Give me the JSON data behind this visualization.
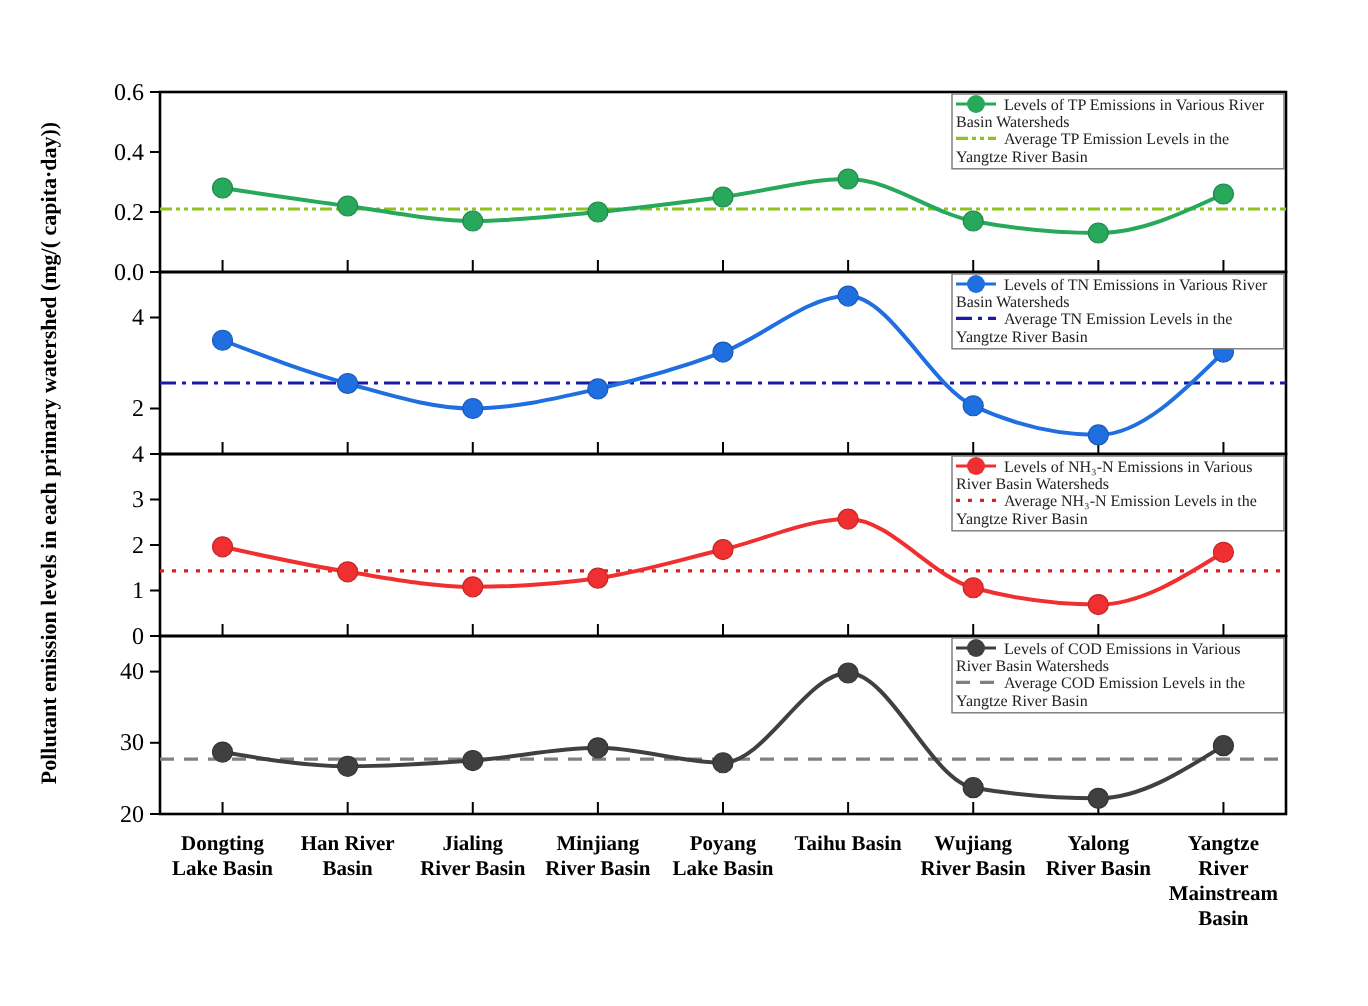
{
  "chart_data": [
    {
      "type": "line",
      "categories": [
        null,
        null,
        null,
        null,
        null,
        null,
        null,
        null,
        null
      ],
      "series": [
        {
          "name": "Levels of TP Emissions in Various River Basin Watersheds",
          "color": "#27a85a",
          "values": [
            0.28,
            0.22,
            0.17,
            0.2,
            0.25,
            0.31,
            0.17,
            0.13,
            0.26
          ]
        }
      ],
      "ref_lines": [
        {
          "axis": "y",
          "value": 0.21,
          "label": "Average TP Emission Levels in the Yangtze River Basin",
          "color": "#8dc21f",
          "line_style": "dashdotdot"
        }
      ],
      "ylim": [
        0,
        0.6
      ],
      "yticks": [
        {
          "value": 0,
          "label": "0.0"
        },
        0.2,
        0.4,
        0.6
      ],
      "marker": "circle",
      "line_style": "solid",
      "legend": "top right",
      "tick_labels": "y"
    },
    {
      "type": "line",
      "categories": [
        null,
        null,
        null,
        null,
        null,
        null,
        null,
        null,
        null
      ],
      "ylabel": "Pollutant emission levels in each primary watershed (mg/( capita·day))",
      "series": [
        {
          "name": "Levels of TN Emissions in Various River Basin Watersheds",
          "color": "#1f6fe0",
          "values": [
            3.5,
            2.55,
            2.0,
            2.43,
            3.24,
            4.47,
            2.06,
            1.42,
            3.24
          ]
        }
      ],
      "ref_lines": [
        {
          "axis": "y",
          "value": 2.56,
          "label": "Average TN Emission Levels in the Yangtze River Basin",
          "color": "#1a1aa8",
          "line_style": "dashdot"
        }
      ],
      "ylim": [
        1,
        5
      ],
      "yticks": [
        2,
        4
      ],
      "marker": "circle",
      "line_style": "solid",
      "legend": "top right",
      "tick_labels": "y"
    },
    {
      "type": "line",
      "categories": [
        null,
        null,
        null,
        null,
        null,
        null,
        null,
        null,
        null
      ],
      "series": [
        {
          "name": "Levels of NH₃-N Emissions in Various River Basin Watersheds",
          "color": "#f03030",
          "values": [
            1.96,
            1.41,
            1.08,
            1.27,
            1.9,
            2.57,
            1.06,
            0.69,
            1.84
          ]
        }
      ],
      "ref_lines": [
        {
          "axis": "y",
          "value": 1.43,
          "label": "Average NH₃-N Emission Levels in the Yangtze River Basin",
          "color": "#e02020",
          "line_style": "dotted"
        }
      ],
      "ylim": [
        0,
        4
      ],
      "yticks": [
        0,
        1,
        2,
        3,
        4
      ],
      "marker": "circle",
      "line_style": "solid",
      "legend": "top right",
      "tick_labels": "y"
    },
    {
      "type": "line",
      "categories": [
        "Dongting Lake Basin",
        "Han River Basin",
        "Jialing River Basin",
        "Minjiang River Basin",
        "Poyang Lake Basin",
        "Taihu Basin",
        "Wujiang River Basin",
        "Yalong River Basin",
        "Yangtze River Mainstream Basin"
      ],
      "series": [
        {
          "name": "Levels of COD Emissions in Various River Basin Watersheds",
          "color": "#404040",
          "values": [
            28.7,
            26.7,
            27.5,
            29.3,
            27.2,
            39.8,
            23.7,
            22.2,
            29.6
          ]
        }
      ],
      "ref_lines": [
        {
          "axis": "y",
          "value": 27.7,
          "label": "Average COD Emission Levels in the Yangtze River Basin",
          "color": "#808080",
          "line_style": "dashed"
        }
      ],
      "ylim": [
        20,
        45
      ],
      "yticks": [
        20,
        30,
        40
      ],
      "marker": "circle",
      "line_style": "solid",
      "legend": "top right"
    }
  ]
}
